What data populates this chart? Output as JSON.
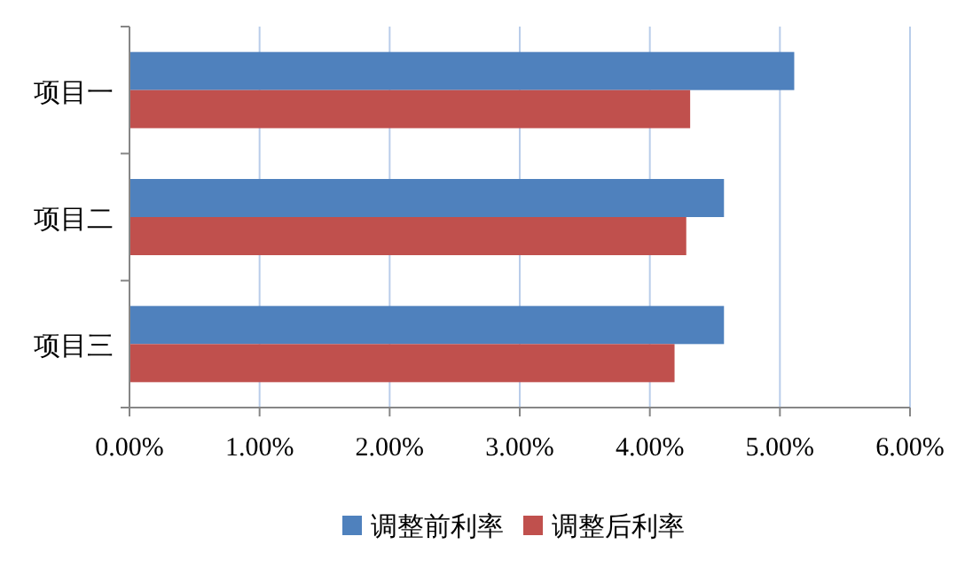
{
  "chart_data": {
    "type": "bar",
    "orientation": "horizontal",
    "categories": [
      "项目一",
      "项目二",
      "项目三"
    ],
    "series": [
      {
        "name": "调整前利率",
        "color": "#4f81bd",
        "values": [
          5.11,
          4.57,
          4.57
        ]
      },
      {
        "name": "调整后利率",
        "color": "#c0504d",
        "values": [
          4.31,
          4.28,
          4.19
        ]
      }
    ],
    "xlim": [
      0,
      6
    ],
    "xticks": [
      {
        "value": 0,
        "label": "0.00%"
      },
      {
        "value": 1,
        "label": "1.00%"
      },
      {
        "value": 2,
        "label": "2.00%"
      },
      {
        "value": 3,
        "label": "3.00%"
      },
      {
        "value": 4,
        "label": "4.00%"
      },
      {
        "value": 5,
        "label": "5.00%"
      },
      {
        "value": 6,
        "label": "6.00%"
      }
    ],
    "grid": "x",
    "legend": "bottom"
  }
}
